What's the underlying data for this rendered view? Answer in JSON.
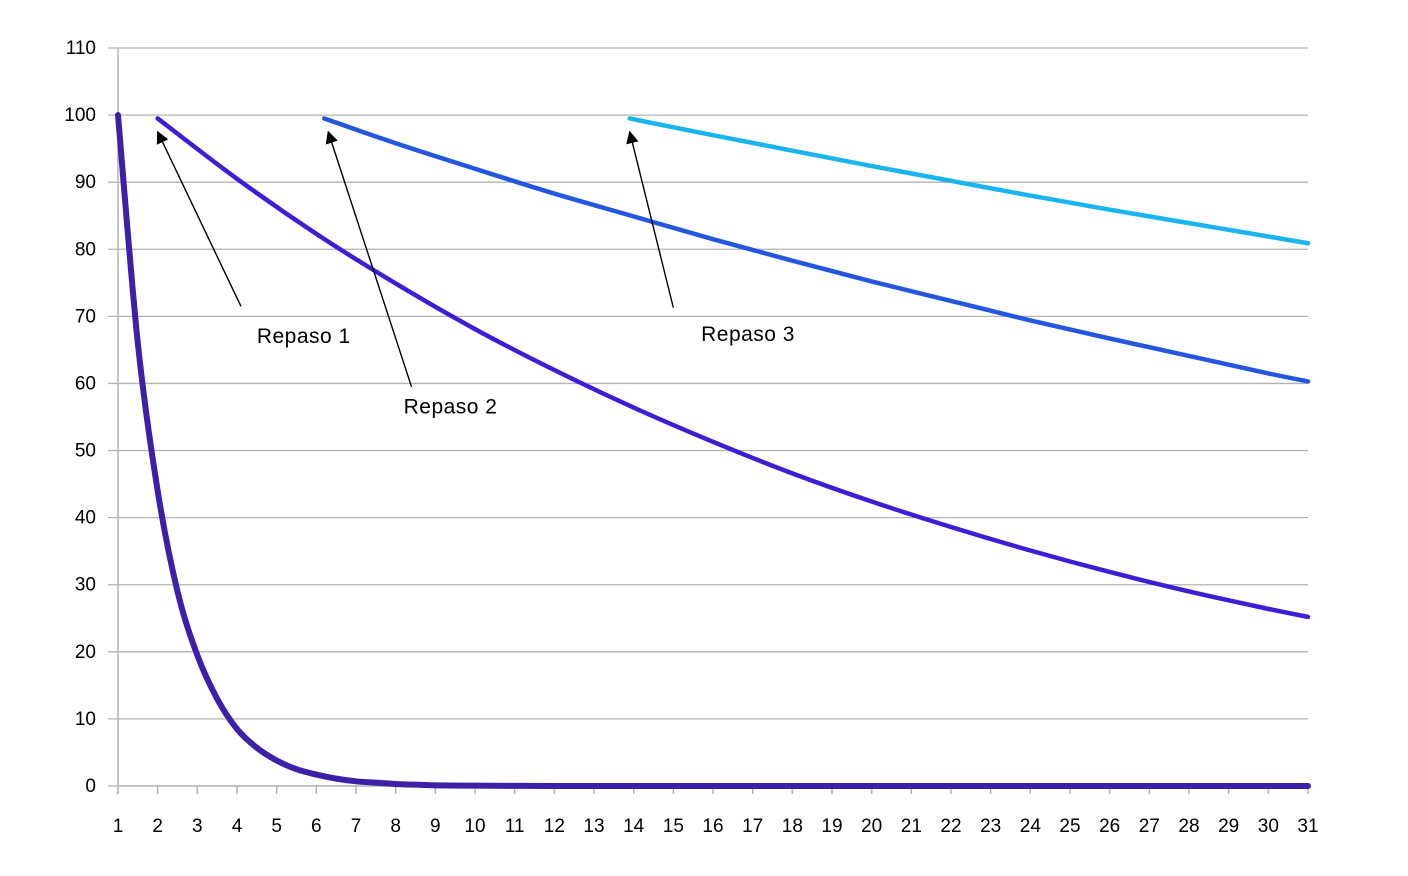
{
  "chart_data": {
    "type": "line",
    "title": "",
    "xlabel": "",
    "ylabel": "",
    "xlim": [
      1,
      31
    ],
    "ylim": [
      0,
      110
    ],
    "x_ticks": [
      1,
      2,
      3,
      4,
      5,
      6,
      7,
      8,
      9,
      10,
      11,
      12,
      13,
      14,
      15,
      16,
      17,
      18,
      19,
      20,
      21,
      22,
      23,
      24,
      25,
      26,
      27,
      28,
      29,
      30,
      31
    ],
    "y_ticks": [
      0,
      10,
      20,
      30,
      40,
      50,
      60,
      70,
      80,
      90,
      100,
      110
    ],
    "grid": "horizontal",
    "legend": "none",
    "series": [
      {
        "color": "#3d1fa8",
        "x": [
          1,
          1.5,
          2,
          2.5,
          3,
          3.5,
          4,
          4.5,
          5,
          5.5,
          6,
          6.5,
          7,
          7.5,
          8,
          8.5,
          9,
          10,
          11,
          12,
          14,
          16,
          20,
          25,
          31
        ],
        "y": [
          100,
          66,
          44,
          29,
          19.5,
          13,
          8.5,
          5.7,
          3.8,
          2.5,
          1.7,
          1.1,
          0.7,
          0.5,
          0.3,
          0.2,
          0.1,
          0.05,
          0.02,
          0,
          0,
          0,
          0,
          0,
          0
        ]
      },
      {
        "color": "#3a1fd6",
        "x": [
          2,
          4,
          6,
          8,
          10,
          12,
          14,
          16,
          18,
          20,
          22,
          24,
          26,
          28,
          30,
          31
        ],
        "y": [
          99.5,
          90.5,
          82.3,
          74.9,
          68.1,
          62.0,
          56.4,
          51.3,
          46.6,
          42.4,
          38.6,
          35.1,
          31.9,
          29.0,
          26.4,
          25.2
        ]
      },
      {
        "color": "#2457e0",
        "x": [
          6.2,
          8,
          10,
          12,
          14,
          16,
          18,
          20,
          22,
          24,
          26,
          28,
          30,
          31
        ],
        "y": [
          99.5,
          95.8,
          92.0,
          88.3,
          84.9,
          81.5,
          78.3,
          75.2,
          72.3,
          69.4,
          66.7,
          64.1,
          61.5,
          60.3
        ]
      },
      {
        "color": "#1ab4ee",
        "x": [
          13.9,
          16,
          18,
          20,
          22,
          24,
          26,
          28,
          30,
          31
        ],
        "y": [
          99.5,
          97.0,
          94.7,
          92.4,
          90.2,
          88.0,
          85.9,
          83.9,
          81.9,
          80.9
        ]
      }
    ],
    "annotations": [
      {
        "text": "Repaso 1",
        "x": 4.5,
        "y": 66,
        "arrow_from": [
          4.1,
          71.5
        ],
        "arrow_to": [
          2.0,
          97.5
        ]
      },
      {
        "text": "Repaso 2",
        "x": 8.2,
        "y": 55.5,
        "arrow_from": [
          8.4,
          59.5
        ],
        "arrow_to": [
          6.3,
          97.5
        ]
      },
      {
        "text": "Repaso 3",
        "x": 15.7,
        "y": 66.3,
        "arrow_from": [
          15.0,
          71.3
        ],
        "arrow_to": [
          13.9,
          97.5
        ]
      }
    ]
  }
}
